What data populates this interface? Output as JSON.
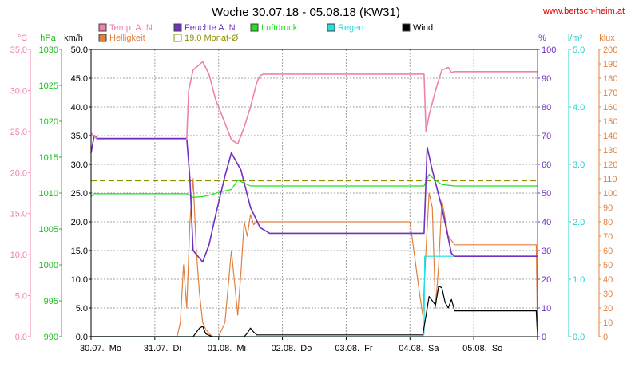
{
  "chart_data": {
    "type": "line",
    "title": "Woche 30.07.18 - 05.08.18 (KW31)",
    "source": "www.bertsch-heim.at",
    "x_labels": [
      "30.07.  Mo",
      "31.07.  Di",
      "01.08.  Mi",
      "02.08.  Do",
      "03.08.  Fr",
      "04.08.  Sa",
      "05.08.  So"
    ],
    "x_range_days": [
      0,
      7
    ],
    "grid": true,
    "axes": {
      "temp": {
        "unit": "°C",
        "color": "#f080b0",
        "min": 0,
        "max": 35,
        "ticks": [
          "0.0",
          "5.0",
          "10.0",
          "15.0",
          "20.0",
          "25.0",
          "30.0",
          "35.0"
        ]
      },
      "press": {
        "unit": "hPa",
        "color": "#20c020",
        "min": 990,
        "max": 1030,
        "ticks": [
          "990",
          "995",
          "1000",
          "1005",
          "1010",
          "1015",
          "1020",
          "1025",
          "1030"
        ]
      },
      "wind": {
        "unit": "km/h",
        "color": "#000000",
        "min": 0,
        "max": 50,
        "ticks": [
          "0.0",
          "5.0",
          "10.0",
          "15.0",
          "20.0",
          "25.0",
          "30.0",
          "35.0",
          "40.0",
          "45.0",
          "50.0"
        ]
      },
      "hum": {
        "unit": "%",
        "color": "#7030c0",
        "min": 0,
        "max": 100,
        "ticks": [
          "0",
          "10",
          "20",
          "30",
          "40",
          "50",
          "60",
          "70",
          "80",
          "90",
          "100"
        ]
      },
      "rain": {
        "unit": "l/m²",
        "color": "#20d0d0",
        "min": 0,
        "max": 5,
        "ticks": [
          "0.0",
          "1.0",
          "2.0",
          "3.0",
          "4.0",
          "5.0"
        ]
      },
      "lux": {
        "unit": "klux",
        "color": "#e08040",
        "min": 0,
        "max": 200,
        "ticks": [
          "0",
          "10",
          "20",
          "30",
          "40",
          "50",
          "60",
          "70",
          "80",
          "90",
          "100",
          "110",
          "120",
          "130",
          "140",
          "150",
          "160",
          "170",
          "180",
          "190",
          "200"
        ]
      }
    },
    "legend": [
      {
        "name": "Temp. A. N",
        "color": "#f080b0",
        "style": "filled"
      },
      {
        "name": "Feuchte A. N",
        "color": "#7030c0",
        "style": "filled"
      },
      {
        "name": "Luftdruck",
        "color": "#20e020",
        "style": "filled"
      },
      {
        "name": "Regen",
        "color": "#20e0e0",
        "style": "filled"
      },
      {
        "name": "Wind",
        "color": "#000000",
        "style": "filled"
      },
      {
        "name": "Helligkeit",
        "color": "#e08040",
        "style": "filled"
      },
      {
        "name": "19.0 Monat-Ø",
        "color": "#909000",
        "style": "open"
      }
    ],
    "series": [
      {
        "name": "Temp. A. N",
        "axis": "temp",
        "color": "#f080b0",
        "x": [
          0.0,
          0.03,
          0.1,
          0.5,
          1.0,
          1.5,
          1.53,
          1.6,
          1.75,
          1.85,
          1.95,
          2.1,
          2.2,
          2.3,
          2.4,
          2.5,
          2.6,
          2.65,
          2.7,
          3.0,
          4.0,
          5.0,
          5.22,
          5.25,
          5.3,
          5.4,
          5.5,
          5.6,
          5.65,
          5.7,
          6.0,
          6.5,
          7.0
        ],
        "y": [
          24.8,
          24.6,
          24.0,
          24.0,
          24.0,
          24.0,
          30.0,
          32.5,
          33.5,
          32.0,
          29.0,
          26.0,
          24.0,
          23.5,
          25.5,
          28.0,
          31.0,
          31.8,
          32.0,
          32.0,
          32.0,
          32.0,
          32.0,
          25.0,
          27.0,
          30.0,
          32.5,
          32.8,
          32.2,
          32.3,
          32.3,
          32.3,
          32.3
        ]
      },
      {
        "name": "Feuchte A. N",
        "axis": "hum",
        "color": "#7030c0",
        "x": [
          0.0,
          0.05,
          0.1,
          0.5,
          1.0,
          1.5,
          1.55,
          1.6,
          1.75,
          1.85,
          1.95,
          2.1,
          2.2,
          2.35,
          2.5,
          2.65,
          2.8,
          3.0,
          4.0,
          5.0,
          5.22,
          5.27,
          5.35,
          5.5,
          5.65,
          5.7,
          6.0,
          6.5,
          7.0
        ],
        "y": [
          64,
          70,
          69,
          69,
          69,
          69,
          55,
          30,
          26,
          32,
          42,
          56,
          64,
          58,
          45,
          38,
          36,
          36,
          36,
          36,
          36,
          66,
          58,
          45,
          29,
          28,
          28,
          28,
          28
        ]
      },
      {
        "name": "Luftdruck",
        "axis": "press",
        "color": "#20e020",
        "x": [
          0.0,
          0.05,
          0.5,
          1.0,
          1.5,
          1.6,
          1.75,
          1.9,
          2.0,
          2.2,
          2.3,
          2.4,
          2.5,
          3.0,
          4.0,
          5.0,
          5.22,
          5.3,
          5.4,
          5.5,
          5.7,
          6.0,
          6.5,
          7.0
        ],
        "y": [
          1009.5,
          1009.9,
          1009.9,
          1009.9,
          1009.9,
          1009.4,
          1009.5,
          1009.8,
          1010.1,
          1010.5,
          1011.8,
          1011.4,
          1011.0,
          1011.0,
          1011.0,
          1011.0,
          1011.0,
          1012.6,
          1011.8,
          1011.2,
          1011.0,
          1011.0,
          1011.0,
          1011.0
        ]
      },
      {
        "name": "Regen",
        "axis": "rain",
        "color": "#20e0e0",
        "x": [
          0.0,
          5.0,
          5.2,
          5.22,
          5.23,
          6.0,
          7.0
        ],
        "y": [
          0,
          0,
          0,
          0.05,
          1.4,
          1.4,
          1.4
        ]
      },
      {
        "name": "Wind",
        "axis": "wind",
        "color": "#000000",
        "x": [
          0.0,
          1.6,
          1.7,
          1.75,
          1.8,
          1.9,
          2.4,
          2.45,
          2.5,
          2.55,
          2.6,
          3.0,
          4.0,
          5.0,
          5.2,
          5.3,
          5.4,
          5.45,
          5.5,
          5.55,
          5.6,
          5.65,
          5.7,
          6.0,
          6.5,
          6.98,
          7.0
        ],
        "y": [
          0,
          0,
          1.5,
          1.8,
          0.5,
          0,
          0,
          0.6,
          1.5,
          0.8,
          0.3,
          0.3,
          0.3,
          0.3,
          0.3,
          7.0,
          5.5,
          8.8,
          8.5,
          6.0,
          5.0,
          6.5,
          4.5,
          4.5,
          4.5,
          4.5,
          0.0
        ]
      },
      {
        "name": "Helligkeit",
        "axis": "lux",
        "color": "#e08040",
        "x": [
          0.0,
          1.35,
          1.4,
          1.45,
          1.5,
          1.55,
          1.6,
          1.65,
          1.7,
          1.75,
          1.8,
          1.9,
          2.0,
          2.1,
          2.15,
          2.2,
          2.3,
          2.35,
          2.4,
          2.45,
          2.5,
          2.55,
          2.6,
          2.65,
          2.7,
          3.0,
          4.0,
          5.0,
          5.15,
          5.2,
          5.25,
          5.3,
          5.35,
          5.4,
          5.45,
          5.5,
          5.6,
          5.7,
          6.0,
          6.5,
          6.98,
          7.0
        ],
        "y": [
          0,
          0,
          10,
          50,
          20,
          80,
          110,
          60,
          30,
          10,
          5,
          0,
          0,
          10,
          35,
          60,
          15,
          45,
          80,
          70,
          85,
          78,
          80,
          80,
          80,
          80,
          80,
          80,
          30,
          15,
          60,
          100,
          90,
          20,
          50,
          95,
          70,
          64,
          64,
          64,
          64,
          0
        ]
      }
    ],
    "reference_line": {
      "name": "19.0 Monat-Ø",
      "axis": "temp",
      "value": 19.0,
      "color": "#909000",
      "style": "dashed"
    }
  }
}
